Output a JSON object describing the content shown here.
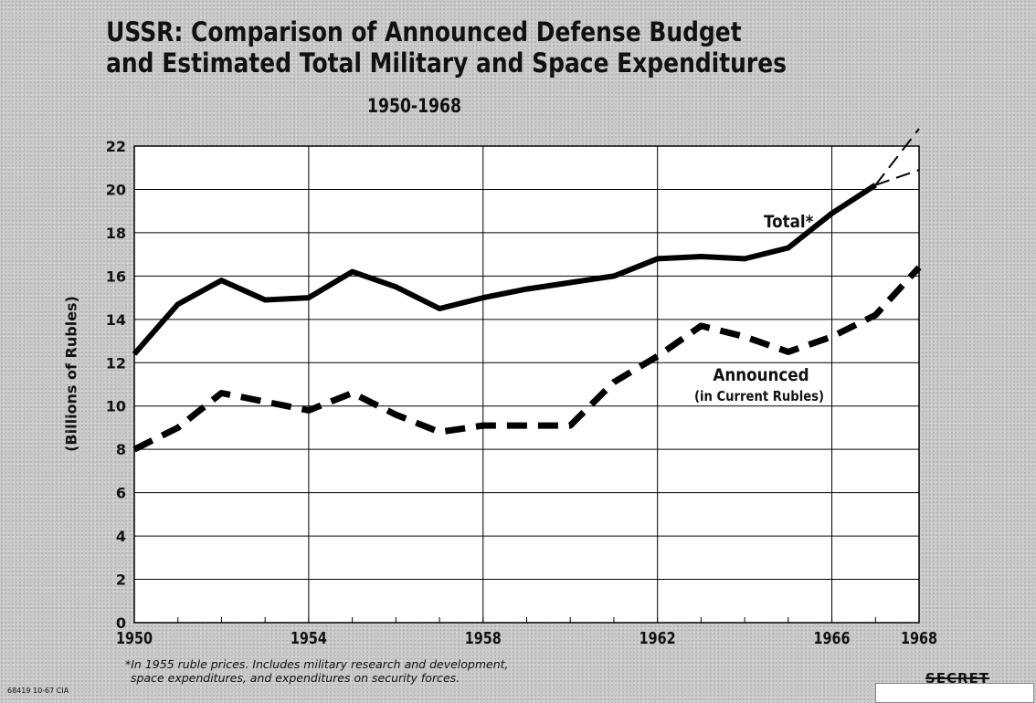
{
  "title_line1": "USSR:  Comparison of Announced Defense Budget",
  "title_line2": "and Estimated Total Military and Space Expenditures",
  "subtitle": "1950-1968",
  "footnote_line1": "*In 1955 ruble prices.  Includes military research and development,",
  "footnote_line2": "space expenditures, and expenditures on security forces.",
  "doc_code": "68419  10-67  CIA",
  "classification": "SECRET",
  "chart_data": {
    "type": "line",
    "title": "USSR:  Comparison of Announced Defense Budget and Estimated Total Military and Space Expenditures",
    "subtitle": "1950-1968",
    "xlabel": "",
    "ylabel": "(Billions of Rubles)",
    "xlim": [
      1950,
      1968
    ],
    "ylim": [
      0,
      22
    ],
    "x_tick_labels": [
      "1950",
      "1954",
      "1958",
      "1962",
      "1966",
      "1968"
    ],
    "y_tick_labels": [
      "0",
      "2",
      "4",
      "6",
      "8",
      "10",
      "12",
      "14",
      "16",
      "18",
      "20",
      "22"
    ],
    "grid": true,
    "series": [
      {
        "name": "Total*",
        "style": "solid",
        "x": [
          1950,
          1951,
          1952,
          1953,
          1954,
          1955,
          1956,
          1957,
          1958,
          1959,
          1960,
          1961,
          1962,
          1963,
          1964,
          1965,
          1966,
          1967
        ],
        "y": [
          12.4,
          14.7,
          15.8,
          14.9,
          15.0,
          16.2,
          15.5,
          14.5,
          15.0,
          15.4,
          15.7,
          16.0,
          16.8,
          16.9,
          16.8,
          17.3,
          18.9,
          20.2
        ]
      },
      {
        "name": "Total* (projection, high)",
        "style": "thin-dashed",
        "x": [
          1967,
          1968
        ],
        "y": [
          20.2,
          22.8
        ]
      },
      {
        "name": "Total* (projection, low)",
        "style": "thin-dashed",
        "x": [
          1967,
          1968
        ],
        "y": [
          20.2,
          20.9
        ]
      },
      {
        "name": "Announced",
        "label_note": "(in Current Rubles)",
        "style": "heavy-dashed",
        "x": [
          1950,
          1951,
          1952,
          1953,
          1954,
          1955,
          1956,
          1957,
          1958,
          1959,
          1960,
          1961,
          1962,
          1963,
          1964,
          1965,
          1966,
          1967,
          1968
        ],
        "y": [
          8.0,
          9.0,
          10.6,
          10.2,
          9.8,
          10.6,
          9.6,
          8.8,
          9.1,
          9.1,
          9.1,
          11.1,
          12.3,
          13.7,
          13.2,
          12.5,
          13.2,
          14.2,
          16.4
        ]
      }
    ]
  }
}
